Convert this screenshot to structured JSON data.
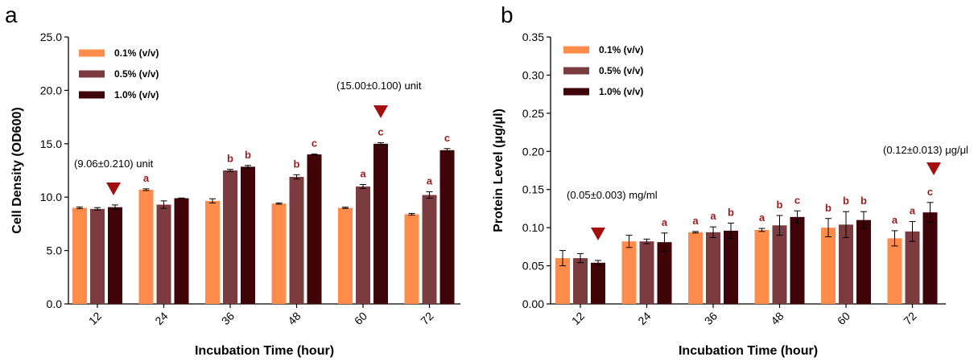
{
  "colors": {
    "s01": "#ff8c4a",
    "s05": "#7b3b3f",
    "s10": "#3f0408",
    "letter": "#9b1b1b",
    "marker": "#a30f0f"
  },
  "chart_data": [
    {
      "panel": "a",
      "type": "bar",
      "categories": [
        "12",
        "24",
        "36",
        "48",
        "60",
        "72"
      ],
      "xlabel": "Incubation Time (hour)",
      "ylabel": "Cell Density (OD600)",
      "ylim": [
        0,
        25
      ],
      "yticks": [
        "0.0",
        "5.0",
        "10.0",
        "15.0",
        "20.0",
        "25.0"
      ],
      "legend_position": "top-left",
      "series": [
        {
          "name": "0.1% (v/v)",
          "values": [
            9.0,
            10.7,
            9.65,
            9.4,
            9.0,
            8.4
          ],
          "errors": [
            0.08,
            0.08,
            0.2,
            0.06,
            0.06,
            0.08
          ],
          "letters": [
            "",
            "a",
            "",
            "",
            "",
            ""
          ]
        },
        {
          "name": "0.5% (v/v)",
          "values": [
            8.9,
            9.3,
            12.5,
            11.9,
            11.0,
            10.2
          ],
          "errors": [
            0.12,
            0.35,
            0.1,
            0.2,
            0.18,
            0.3
          ],
          "letters": [
            "",
            "",
            "b",
            "b",
            "a",
            "a"
          ]
        },
        {
          "name": "1.0% (v/v)",
          "values": [
            9.06,
            9.9,
            12.85,
            14.0,
            15.0,
            14.4
          ],
          "errors": [
            0.21,
            0.02,
            0.12,
            0.03,
            0.1,
            0.15
          ],
          "letters": [
            "",
            "",
            "b",
            "c",
            "c",
            "c"
          ]
        }
      ],
      "annotations": [
        {
          "text": "(9.06±0.210) unit",
          "category": 0
        },
        {
          "text": "(15.00±0.100) unit",
          "category": 4
        }
      ]
    },
    {
      "panel": "b",
      "type": "bar",
      "categories": [
        "12",
        "24",
        "36",
        "48",
        "60",
        "72"
      ],
      "xlabel": "Incubation Time (hour)",
      "ylabel": "Protein Level (μg/μl)",
      "ylim": [
        0,
        0.35
      ],
      "yticks": [
        "0.00",
        "0.05",
        "0.10",
        "0.15",
        "0.20",
        "0.25",
        "0.30",
        "0.35"
      ],
      "legend_position": "top-left",
      "series": [
        {
          "name": "0.1% (v/v)",
          "values": [
            0.06,
            0.082,
            0.094,
            0.097,
            0.1,
            0.086
          ],
          "errors": [
            0.01,
            0.008,
            0.001,
            0.002,
            0.012,
            0.01
          ],
          "letters": [
            "",
            "",
            "a",
            "a",
            "b",
            "a"
          ]
        },
        {
          "name": "0.5% (v/v)",
          "values": [
            0.06,
            0.082,
            0.094,
            0.103,
            0.104,
            0.095
          ],
          "errors": [
            0.006,
            0.003,
            0.007,
            0.013,
            0.017,
            0.013
          ],
          "letters": [
            "",
            "",
            "a",
            "b",
            "b",
            "a"
          ]
        },
        {
          "name": "1.0% (v/v)",
          "values": [
            0.054,
            0.081,
            0.096,
            0.114,
            0.11,
            0.12
          ],
          "errors": [
            0.003,
            0.012,
            0.01,
            0.008,
            0.011,
            0.013
          ],
          "letters": [
            "",
            "a",
            "b",
            "c",
            "b",
            "c"
          ]
        }
      ],
      "annotations": [
        {
          "text": "(0.05±0.003) mg/ml",
          "category": 0
        },
        {
          "text": "(0.12±0.013) μg/μl",
          "category": 5
        }
      ]
    }
  ]
}
